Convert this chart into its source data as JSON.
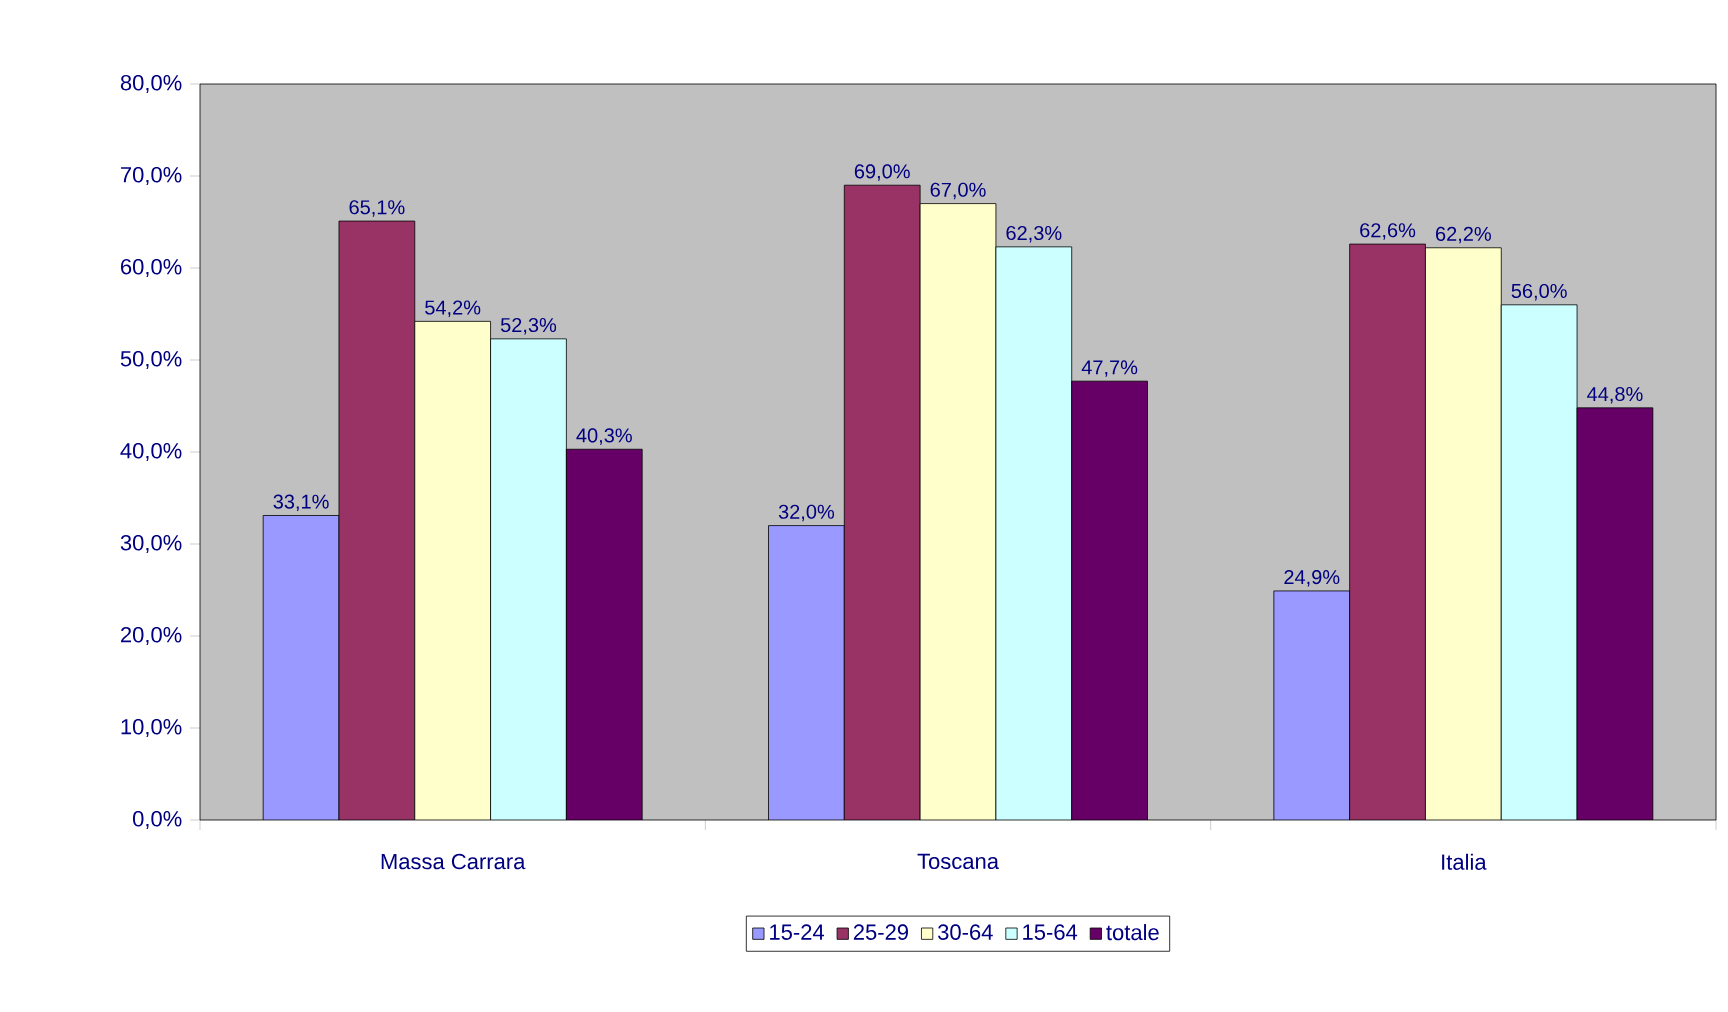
{
  "chart_data": {
    "type": "bar",
    "categories": [
      "Massa Carrara",
      "Toscana",
      "Italia"
    ],
    "series": [
      {
        "name": "15-24",
        "color": "#9999ff",
        "values": [
          33.1,
          32.0,
          24.9
        ],
        "value_labels": [
          "33,1%",
          "32,0%",
          "24,9%"
        ]
      },
      {
        "name": "25-29",
        "color": "#993366",
        "values": [
          65.1,
          69.0,
          62.6
        ],
        "value_labels": [
          "65,1%",
          "69,0%",
          "62,6%"
        ]
      },
      {
        "name": "30-64",
        "color": "#ffffcc",
        "values": [
          54.2,
          67.0,
          62.2
        ],
        "value_labels": [
          "54,2%",
          "67,0%",
          "62,2%"
        ]
      },
      {
        "name": "15-64",
        "color": "#ccffff",
        "values": [
          52.3,
          62.3,
          56.0
        ],
        "value_labels": [
          "52,3%",
          "62,3%",
          "56,0%"
        ]
      },
      {
        "name": "totale",
        "color": "#660066",
        "values": [
          40.3,
          47.7,
          44.8
        ],
        "value_labels": [
          "40,3%",
          "47,7%",
          "44,8%"
        ]
      }
    ],
    "ylim": [
      0,
      80
    ],
    "yticks": [
      {
        "value": 0,
        "label": "0,0%"
      },
      {
        "value": 10,
        "label": "10,0%"
      },
      {
        "value": 20,
        "label": "20,0%"
      },
      {
        "value": 30,
        "label": "30,0%"
      },
      {
        "value": 40,
        "label": "40,0%"
      },
      {
        "value": 50,
        "label": "50,0%"
      },
      {
        "value": 60,
        "label": "60,0%"
      },
      {
        "value": 70,
        "label": "70,0%"
      },
      {
        "value": 80,
        "label": "80,0%"
      }
    ],
    "grid": false,
    "legend": "bottom"
  }
}
